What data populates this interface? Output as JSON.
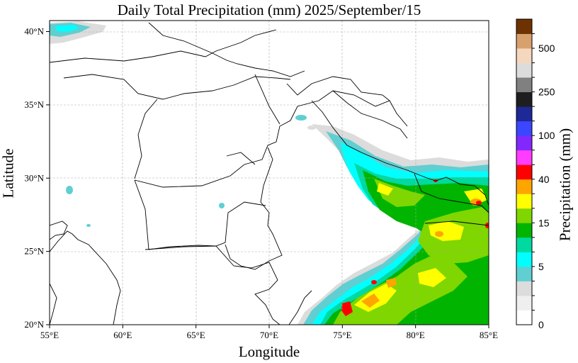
{
  "title": "Daily Total Precipitation (mm)  2025/September/15",
  "xlabel": "Longitude",
  "ylabel": "Latitude",
  "colorbar": {
    "label": "Precipitation (mm)",
    "colors": [
      "#ffffff",
      "#efefef",
      "#dcdcdc",
      "#5fcfd2",
      "#00ffff",
      "#00d9a0",
      "#00b400",
      "#7fd600",
      "#ffff00",
      "#ffa500",
      "#ff0000",
      "#ff3cff",
      "#8228ff",
      "#3a46ff",
      "#1e2896",
      "#1e1e1e",
      "#808080",
      "#dcdcdc",
      "#f5d7bd",
      "#d7a06e",
      "#6e3200"
    ],
    "tick_labels": [
      "0",
      "5",
      "15",
      "40",
      "100",
      "250",
      "500"
    ],
    "tick_index": [
      0,
      4,
      7,
      10,
      13,
      16,
      19
    ]
  },
  "axes": {
    "lon_ticks": [
      "55°E",
      "60°E",
      "65°E",
      "70°E",
      "75°E",
      "80°E",
      "85°E"
    ],
    "lat_ticks": [
      "20°N",
      "25°N",
      "30°N",
      "35°N",
      "40°N"
    ],
    "lon_values": [
      55,
      60,
      65,
      70,
      75,
      80,
      85
    ],
    "lat_values": [
      20,
      25,
      30,
      35,
      40
    ]
  }
}
